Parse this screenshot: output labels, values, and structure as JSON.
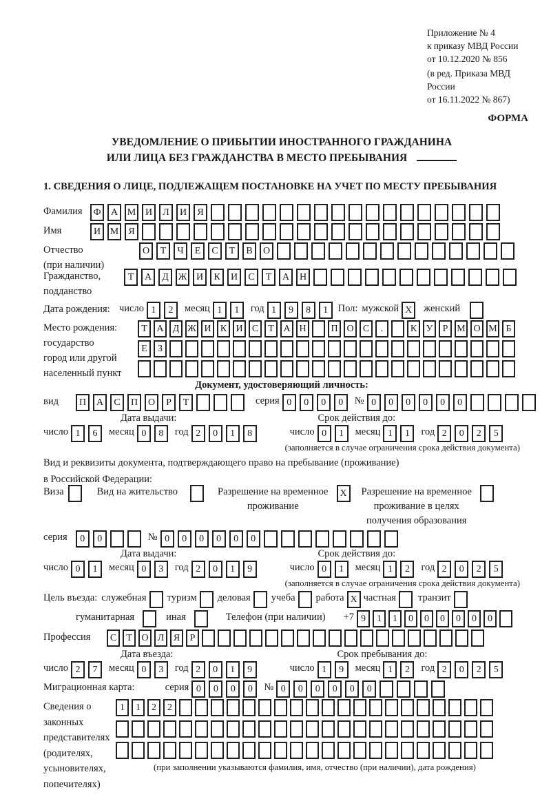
{
  "header": {
    "annex": [
      "Приложение № 4",
      "к приказу МВД России",
      "от 10.12.2020 № 856"
    ],
    "annex_note": [
      "(в ред. Приказа МВД России",
      "от 16.11.2022 № 867)"
    ],
    "forma": "ФОРМА",
    "title1": "УВЕДОМЛЕНИЕ О ПРИБЫТИИ ИНОСТРАННОГО ГРАЖДАНИНА",
    "title2": "ИЛИ ЛИЦА БЕЗ ГРАЖДАНСТВА В МЕСТО ПРЕБЫВАНИЯ",
    "section1": "1. СВЕДЕНИЯ О ЛИЦЕ, ПОДЛЕЖАЩЕМ ПОСТАНОВКЕ НА УЧЕТ ПО МЕСТУ ПРЕБЫВАНИЯ"
  },
  "labels": {
    "surname": "Фамилия",
    "name": "Имя",
    "patronymic": [
      "Отчество",
      "(при наличии)"
    ],
    "citizenship": [
      "Гражданство,",
      "подданство"
    ],
    "birth_date": "Дата рождения:",
    "day": "число",
    "month": "месяц",
    "year": "год",
    "sex": "Пол:",
    "male": "мужской",
    "female": "женский",
    "birth_place": [
      "Место рождения:",
      "государство",
      "город или другой",
      "населенный пункт"
    ],
    "id_doc_heading": "Документ, удостоверяющий личность:",
    "kind": "вид",
    "series": "серия",
    "number": "№",
    "issue_date": "Дата выдачи:",
    "valid_until": "Срок действия до:",
    "valid_note": "(заполняется в случае ограничения срока действия документа)",
    "right_doc": [
      "Вид и реквизиты документа, подтверждающего право на пребывание (проживание)",
      "в Российской Федерации:"
    ],
    "visa": "Виза",
    "residence_permit": "Вид на жительство",
    "temp_residence": [
      "Разрешение на временное",
      "проживание"
    ],
    "temp_edu": [
      "Разрешение на временное",
      "проживание в целях",
      "получения образования"
    ],
    "purpose": "Цель въезда:",
    "official": "служебная",
    "tourism": "туризм",
    "business": "деловая",
    "study": "учеба",
    "work": "работа",
    "private": "частная",
    "transit": "транзит",
    "humanitarian": "гуманитарная",
    "other": "иная",
    "phone": "Телефон (при наличии)",
    "phone_prefix": "+7",
    "profession": "Профессия",
    "entry_date": "Дата въезда:",
    "stay_until": "Срок пребывания до:",
    "migration_card": "Миграционная карта:",
    "legal": [
      "Сведения о",
      "законных",
      "представителях",
      "(родителях,",
      "усыновителях,",
      "попечителях)"
    ],
    "legal_note": "(при заполнении указываются фамилия, имя, отчество (при наличии), дата рождения)"
  },
  "person": {
    "surname": {
      "value": "ФАМИЛИЯ",
      "length": 24
    },
    "name": {
      "value": "ИМЯ",
      "length": 24
    },
    "patronymic": {
      "value": "ОТЧЕСТВО",
      "length": 22
    },
    "citizenship": {
      "value": "ТАДЖИКИСТАН",
      "length": 23
    },
    "birth": {
      "day": {
        "value": "12",
        "length": 2
      },
      "month": {
        "value": "11",
        "length": 2
      },
      "year": {
        "value": "1981",
        "length": 4
      }
    },
    "sex_male": {
      "value": "X",
      "length": 1
    },
    "sex_female": {
      "value": "",
      "length": 1
    },
    "birthplace": [
      {
        "value": "ТАДЖИКИСТАН ПОС. КУРМОМБ",
        "length": 24
      },
      {
        "value": "ЕЗ",
        "length": 24
      },
      {
        "value": "",
        "length": 24
      }
    ]
  },
  "id_doc": {
    "kind": {
      "value": "ПАСПОРТ",
      "length": 10
    },
    "series": {
      "value": "0000",
      "length": 4
    },
    "number": {
      "value": "000000",
      "length": 10
    },
    "issue": {
      "day": {
        "value": "16",
        "length": 2
      },
      "month": {
        "value": "08",
        "length": 2
      },
      "year": {
        "value": "2018",
        "length": 4
      }
    },
    "valid": {
      "day": {
        "value": "01",
        "length": 2
      },
      "month": {
        "value": "11",
        "length": 2
      },
      "year": {
        "value": "2025",
        "length": 4
      }
    }
  },
  "permit": {
    "visa": {
      "value": "",
      "length": 1
    },
    "residence": {
      "value": "",
      "length": 1
    },
    "temp": {
      "value": "X",
      "length": 1
    },
    "temp_edu": {
      "value": "",
      "length": 1
    },
    "series": {
      "value": "00",
      "length": 4
    },
    "number": {
      "value": "000000",
      "length": 14
    },
    "issue": {
      "day": {
        "value": "01",
        "length": 2
      },
      "month": {
        "value": "03",
        "length": 2
      },
      "year": {
        "value": "2019",
        "length": 4
      }
    },
    "valid": {
      "day": {
        "value": "01",
        "length": 2
      },
      "month": {
        "value": "12",
        "length": 2
      },
      "year": {
        "value": "2025",
        "length": 4
      }
    }
  },
  "purpose": {
    "official": {
      "value": "",
      "length": 1
    },
    "tourism": {
      "value": "",
      "length": 1
    },
    "business": {
      "value": "",
      "length": 1
    },
    "study": {
      "value": "",
      "length": 1
    },
    "work": {
      "value": "X",
      "length": 1
    },
    "private": {
      "value": "",
      "length": 1
    },
    "transit": {
      "value": "",
      "length": 1
    },
    "humanitarian": {
      "value": "",
      "length": 1
    },
    "other": {
      "value": "",
      "length": 1
    }
  },
  "phone": {
    "digits": {
      "value": "911000000",
      "length": 10
    }
  },
  "profession": {
    "value": "СТОЛЯР",
    "length": 24
  },
  "entry": {
    "date": {
      "day": {
        "value": "27",
        "length": 2
      },
      "month": {
        "value": "03",
        "length": 2
      },
      "year": {
        "value": "2019",
        "length": 4
      }
    },
    "stay": {
      "day": {
        "value": "19",
        "length": 2
      },
      "month": {
        "value": "12",
        "length": 2
      },
      "year": {
        "value": "2025",
        "length": 4
      }
    }
  },
  "migration": {
    "series": {
      "value": "0000",
      "length": 4
    },
    "number": {
      "value": "000000",
      "length": 10
    }
  },
  "legal": {
    "rows": [
      {
        "value": "1122",
        "length": 24
      },
      {
        "value": "",
        "length": 24
      },
      {
        "value": "",
        "length": 24
      }
    ]
  }
}
